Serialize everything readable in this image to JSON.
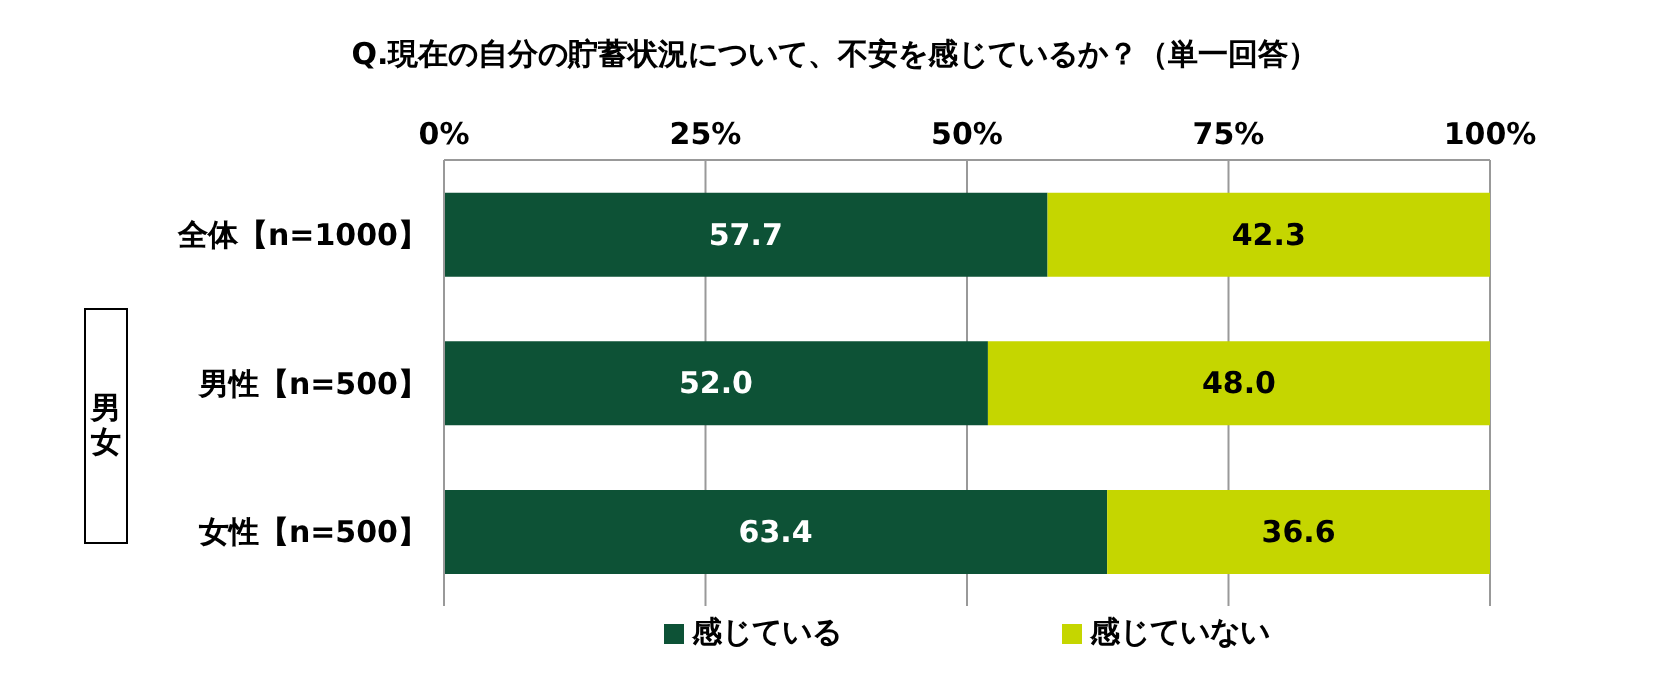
{
  "chart_data": {
    "type": "bar",
    "orientation": "horizontal",
    "stacked": true,
    "title": "Q.現在の自分の貯蓄状況について、不安を感じているか？（単一回答）",
    "categories": [
      "全体【n=1000】",
      "男性【n=500】",
      "女性【n=500】"
    ],
    "series": [
      {
        "name": "感じている",
        "color": "#0d5236",
        "values": [
          57.7,
          52.0,
          63.4
        ],
        "value_labels": [
          "57.7",
          "52.0",
          "63.4"
        ]
      },
      {
        "name": "感じていない",
        "color": "#c5d600",
        "values": [
          42.3,
          48.0,
          36.6
        ],
        "value_labels": [
          "42.3",
          "48.0",
          "36.6"
        ]
      }
    ],
    "xlim": [
      0,
      100
    ],
    "xticks": [
      {
        "value": 0,
        "label": "0%"
      },
      {
        "value": 25,
        "label": "25%"
      },
      {
        "value": 50,
        "label": "50%"
      },
      {
        "value": 75,
        "label": "75%"
      },
      {
        "value": 100,
        "label": "100%"
      }
    ],
    "grid": "x",
    "legend": "bottom",
    "annotations": [
      "男女"
    ]
  }
}
